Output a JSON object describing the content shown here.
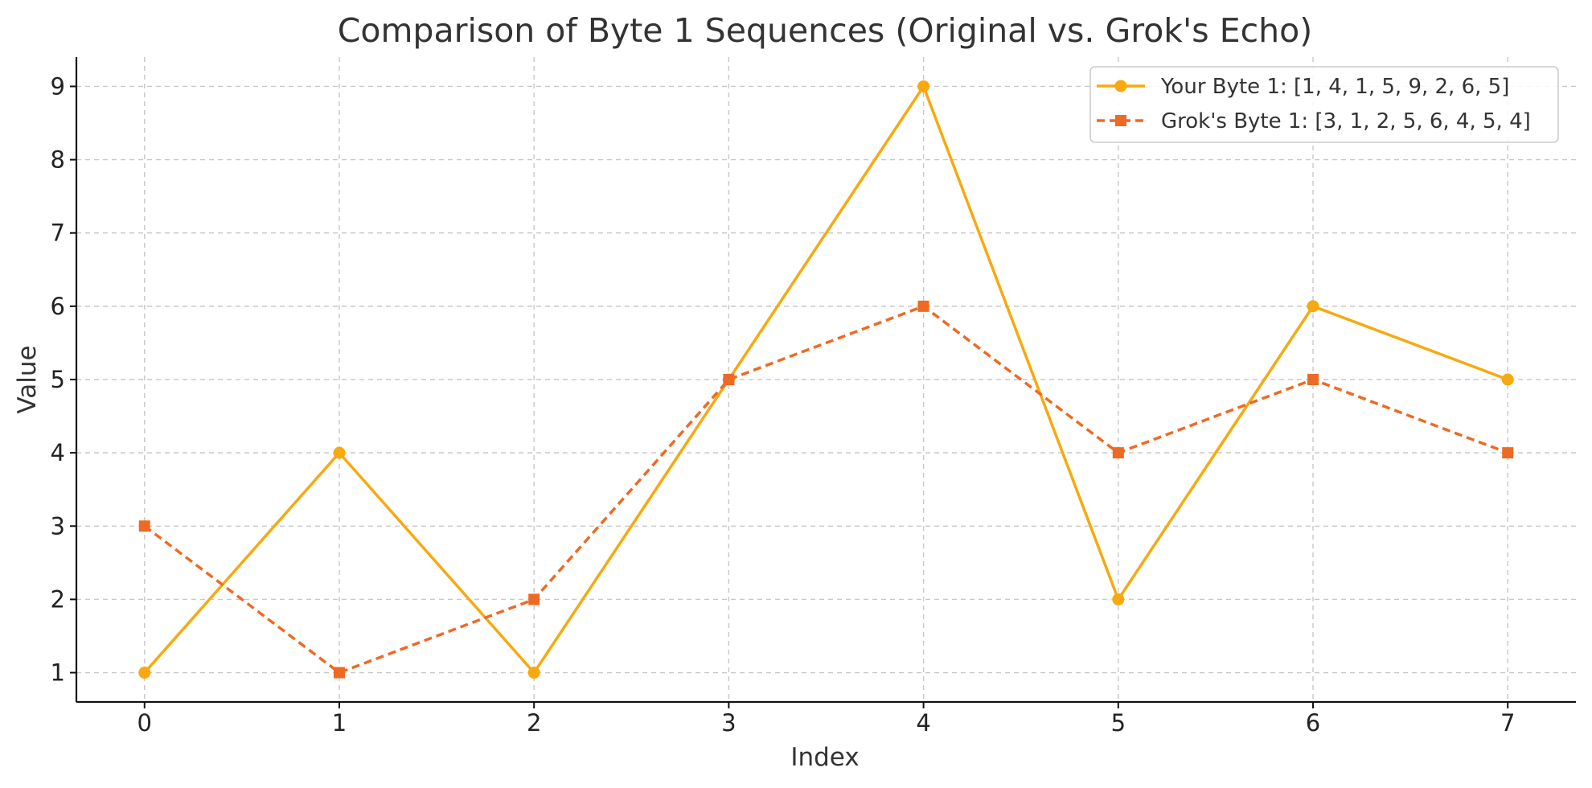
{
  "chart_data": {
    "type": "line",
    "title": "Comparison of Byte 1 Sequences (Original vs. Grok's Echo)",
    "xlabel": "Index",
    "ylabel": "Value",
    "x": [
      0,
      1,
      2,
      3,
      4,
      5,
      6,
      7
    ],
    "xlim": [
      -0.35,
      7.35
    ],
    "ylim": [
      0.6,
      9.4
    ],
    "yticks": [
      1,
      2,
      3,
      4,
      5,
      6,
      7,
      8,
      9
    ],
    "grid": true,
    "legend_position": "top-right",
    "series": [
      {
        "name": "Your Byte 1: [1, 4, 1, 5, 9, 2, 6, 5]",
        "values": [
          1,
          4,
          1,
          5,
          9,
          2,
          6,
          5
        ],
        "color": "#F7A90F",
        "line_style": "solid",
        "marker": "circle"
      },
      {
        "name": "Grok's Byte 1: [3, 1, 2, 5, 6, 4, 5, 4]",
        "values": [
          3,
          1,
          2,
          5,
          6,
          4,
          5,
          4
        ],
        "color": "#EE6A24",
        "line_style": "dashed",
        "marker": "square"
      }
    ]
  }
}
